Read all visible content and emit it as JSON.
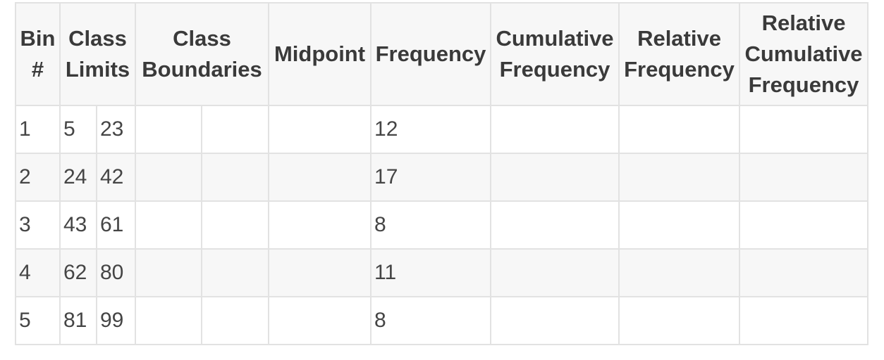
{
  "headers": {
    "bin": [
      "Bin",
      "#"
    ],
    "class_limits": [
      "Class",
      "Limits"
    ],
    "class_boundaries": [
      "Class",
      "Boundaries"
    ],
    "midpoint": "Midpoint",
    "frequency": "Frequency",
    "cumulative_frequency": [
      "Cumulative",
      "Frequency"
    ],
    "relative_frequency": [
      "Relative",
      "Frequency"
    ],
    "relative_cumulative_frequency": [
      "Relative",
      "Cumulative",
      "Frequency"
    ]
  },
  "rows": [
    {
      "bin": "1",
      "lower_limit": "5",
      "upper_limit": "23",
      "lower_boundary": "",
      "upper_boundary": "",
      "midpoint": "",
      "frequency": "12",
      "cumulative_frequency": "",
      "relative_frequency": "",
      "relative_cumulative_frequency": ""
    },
    {
      "bin": "2",
      "lower_limit": "24",
      "upper_limit": "42",
      "lower_boundary": "",
      "upper_boundary": "",
      "midpoint": "",
      "frequency": "17",
      "cumulative_frequency": "",
      "relative_frequency": "",
      "relative_cumulative_frequency": ""
    },
    {
      "bin": "3",
      "lower_limit": "43",
      "upper_limit": "61",
      "lower_boundary": "",
      "upper_boundary": "",
      "midpoint": "",
      "frequency": "8",
      "cumulative_frequency": "",
      "relative_frequency": "",
      "relative_cumulative_frequency": ""
    },
    {
      "bin": "4",
      "lower_limit": "62",
      "upper_limit": "80",
      "lower_boundary": "",
      "upper_boundary": "",
      "midpoint": "",
      "frequency": "11",
      "cumulative_frequency": "",
      "relative_frequency": "",
      "relative_cumulative_frequency": ""
    },
    {
      "bin": "5",
      "lower_limit": "81",
      "upper_limit": "99",
      "lower_boundary": "",
      "upper_boundary": "",
      "midpoint": "",
      "frequency": "8",
      "cumulative_frequency": "",
      "relative_frequency": "",
      "relative_cumulative_frequency": ""
    }
  ]
}
